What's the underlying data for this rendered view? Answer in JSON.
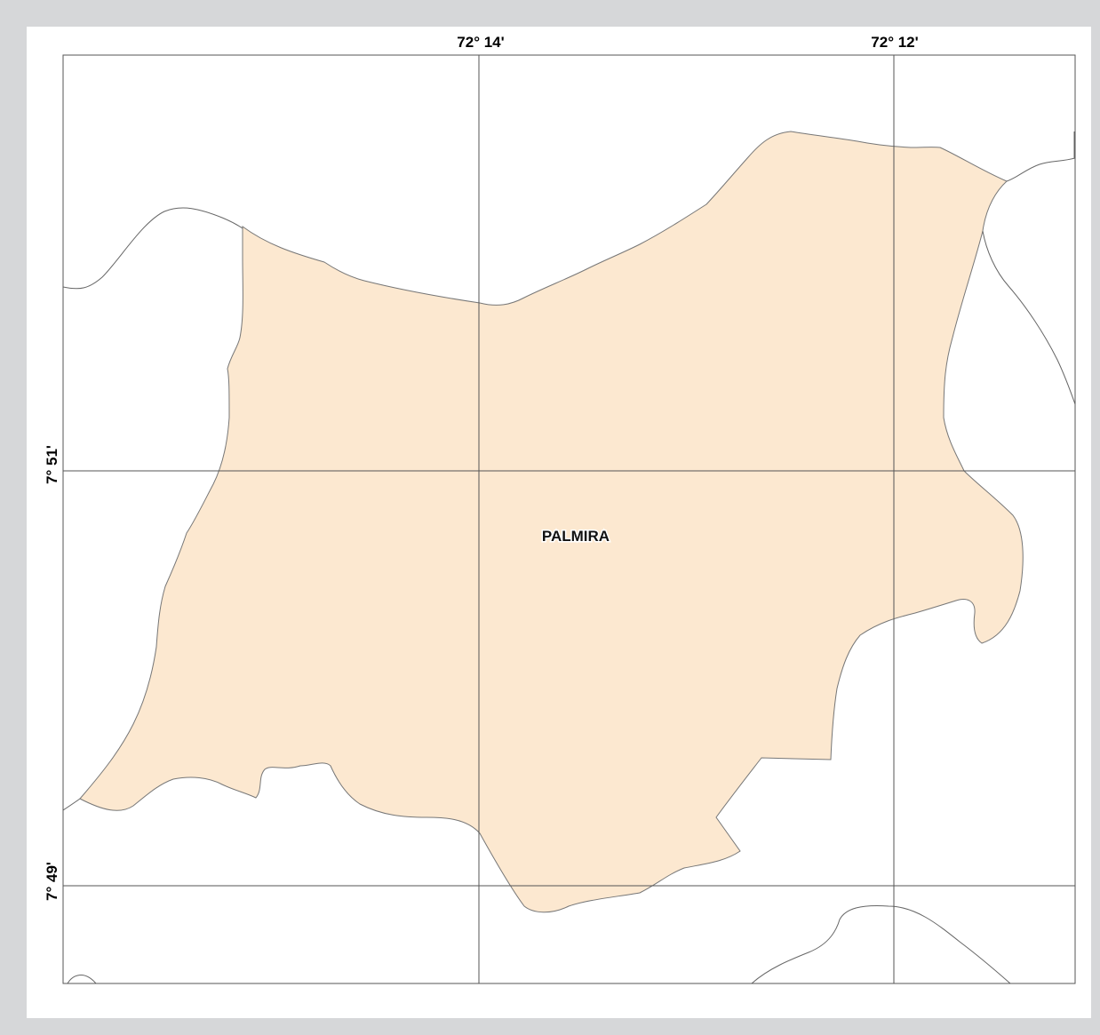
{
  "map": {
    "place_label": "PALMIRA",
    "longitude_labels": [
      "72° 14'",
      "72° 12'"
    ],
    "latitude_labels": [
      "7° 51'",
      "7° 49'"
    ],
    "colors": {
      "background": "#d6d7d9",
      "frame": "#ffffff",
      "region_fill": "#fce8d0",
      "boundary": "#666666",
      "graticule": "#555555"
    }
  }
}
